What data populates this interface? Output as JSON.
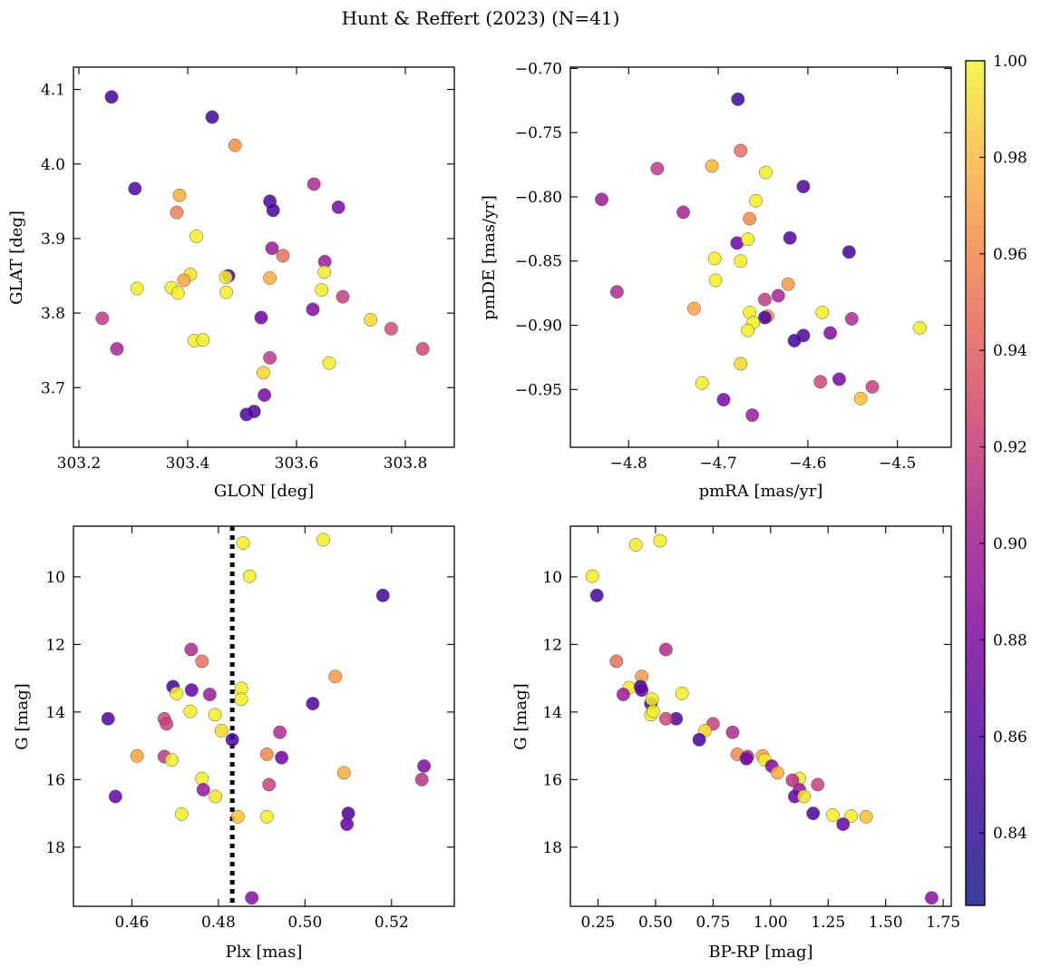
{
  "title": "Hunt & Reffert (2023) (N=41)",
  "colormap": {
    "name": "plasma",
    "min": 0.825,
    "max": 1.0,
    "ticks": [
      0.84,
      0.86,
      0.88,
      0.9,
      0.92,
      0.94,
      0.96,
      0.98,
      1.0
    ],
    "tick_labels": [
      "0.84",
      "0.86",
      "0.88",
      "0.90",
      "0.92",
      "0.94",
      "0.96",
      "0.98",
      "1.00"
    ]
  },
  "chart_data": [
    {
      "type": "scatter",
      "id": "glon-glat",
      "xlabel": "GLON [deg]",
      "ylabel": "GLAT [deg]",
      "xlim": [
        303.19,
        303.89
      ],
      "ylim": [
        3.62,
        4.13
      ],
      "xticks": [
        303.2,
        303.4,
        303.6,
        303.8
      ],
      "xtick_labels": [
        "303.2",
        "303.4",
        "303.6",
        "303.8"
      ],
      "yticks": [
        3.7,
        3.8,
        3.9,
        4.0,
        4.1
      ],
      "ytick_labels": [
        "3.7",
        "3.8",
        "3.9",
        "4.0",
        "4.1"
      ],
      "points": [
        {
          "x": 303.26,
          "y": 4.09,
          "c": 0.83
        },
        {
          "x": 303.445,
          "y": 4.063,
          "c": 0.83
        },
        {
          "x": 303.487,
          "y": 4.025,
          "c": 0.95
        },
        {
          "x": 303.303,
          "y": 3.967,
          "c": 0.835
        },
        {
          "x": 303.632,
          "y": 3.973,
          "c": 0.885
        },
        {
          "x": 303.385,
          "y": 3.958,
          "c": 0.965
        },
        {
          "x": 303.38,
          "y": 3.935,
          "c": 0.94
        },
        {
          "x": 303.551,
          "y": 3.95,
          "c": 0.835
        },
        {
          "x": 303.557,
          "y": 3.938,
          "c": 0.83
        },
        {
          "x": 303.677,
          "y": 3.942,
          "c": 0.855
        },
        {
          "x": 303.416,
          "y": 3.903,
          "c": 0.995
        },
        {
          "x": 303.555,
          "y": 3.887,
          "c": 0.875
        },
        {
          "x": 303.575,
          "y": 3.877,
          "c": 0.93
        },
        {
          "x": 303.652,
          "y": 3.869,
          "c": 0.875
        },
        {
          "x": 303.651,
          "y": 3.855,
          "c": 0.995
        },
        {
          "x": 303.475,
          "y": 3.85,
          "c": 0.83
        },
        {
          "x": 303.47,
          "y": 3.848,
          "c": 0.995
        },
        {
          "x": 303.405,
          "y": 3.852,
          "c": 0.99
        },
        {
          "x": 303.393,
          "y": 3.844,
          "c": 0.96
        },
        {
          "x": 303.551,
          "y": 3.847,
          "c": 0.965
        },
        {
          "x": 303.307,
          "y": 3.833,
          "c": 0.995
        },
        {
          "x": 303.37,
          "y": 3.834,
          "c": 0.995
        },
        {
          "x": 303.382,
          "y": 3.827,
          "c": 0.995
        },
        {
          "x": 303.471,
          "y": 3.828,
          "c": 0.995
        },
        {
          "x": 303.646,
          "y": 3.831,
          "c": 0.995
        },
        {
          "x": 303.685,
          "y": 3.822,
          "c": 0.9
        },
        {
          "x": 303.63,
          "y": 3.805,
          "c": 0.86
        },
        {
          "x": 303.535,
          "y": 3.794,
          "c": 0.85
        },
        {
          "x": 303.243,
          "y": 3.793,
          "c": 0.895
        },
        {
          "x": 303.736,
          "y": 3.791,
          "c": 0.985
        },
        {
          "x": 303.774,
          "y": 3.779,
          "c": 0.91
        },
        {
          "x": 303.412,
          "y": 3.763,
          "c": 0.995
        },
        {
          "x": 303.428,
          "y": 3.764,
          "c": 0.995
        },
        {
          "x": 303.27,
          "y": 3.752,
          "c": 0.88
        },
        {
          "x": 303.832,
          "y": 3.752,
          "c": 0.905
        },
        {
          "x": 303.551,
          "y": 3.74,
          "c": 0.895
        },
        {
          "x": 303.66,
          "y": 3.733,
          "c": 0.995
        },
        {
          "x": 303.539,
          "y": 3.72,
          "c": 0.985
        },
        {
          "x": 303.541,
          "y": 3.69,
          "c": 0.855
        },
        {
          "x": 303.508,
          "y": 3.664,
          "c": 0.835
        },
        {
          "x": 303.522,
          "y": 3.668,
          "c": 0.835
        }
      ]
    },
    {
      "type": "scatter",
      "id": "pmra-pmde",
      "xlabel": "pmRA [mas/yr]",
      "ylabel": "pmDE [mas/yr]",
      "xlim": [
        -4.865,
        -4.44
      ],
      "ylim": [
        -0.995,
        -0.699
      ],
      "xticks": [
        -4.8,
        -4.7,
        -4.6,
        -4.5
      ],
      "xtick_labels": [
        "−4.8",
        "−4.7",
        "−4.6",
        "−4.5"
      ],
      "yticks": [
        -0.95,
        -0.9,
        -0.85,
        -0.8,
        -0.75,
        -0.7
      ],
      "ytick_labels": [
        "−0.95",
        "−0.90",
        "−0.85",
        "−0.80",
        "−0.75",
        "−0.70"
      ],
      "points": [
        {
          "x": -4.678,
          "y": -0.724,
          "c": 0.83
        },
        {
          "x": -4.675,
          "y": -0.764,
          "c": 0.93
        },
        {
          "x": -4.768,
          "y": -0.778,
          "c": 0.895
        },
        {
          "x": -4.707,
          "y": -0.776,
          "c": 0.97
        },
        {
          "x": -4.647,
          "y": -0.781,
          "c": 0.995
        },
        {
          "x": -4.83,
          "y": -0.802,
          "c": 0.875
        },
        {
          "x": -4.658,
          "y": -0.803,
          "c": 0.995
        },
        {
          "x": -4.605,
          "y": -0.792,
          "c": 0.835
        },
        {
          "x": -4.739,
          "y": -0.812,
          "c": 0.88
        },
        {
          "x": -4.665,
          "y": -0.817,
          "c": 0.945
        },
        {
          "x": -4.679,
          "y": -0.836,
          "c": 0.85
        },
        {
          "x": -4.667,
          "y": -0.833,
          "c": 0.995
        },
        {
          "x": -4.62,
          "y": -0.832,
          "c": 0.835
        },
        {
          "x": -4.554,
          "y": -0.843,
          "c": 0.83
        },
        {
          "x": -4.704,
          "y": -0.848,
          "c": 0.995
        },
        {
          "x": -4.675,
          "y": -0.85,
          "c": 0.995
        },
        {
          "x": -4.622,
          "y": -0.868,
          "c": 0.955
        },
        {
          "x": -4.813,
          "y": -0.874,
          "c": 0.885
        },
        {
          "x": -4.703,
          "y": -0.865,
          "c": 0.995
        },
        {
          "x": -4.633,
          "y": -0.877,
          "c": 0.88
        },
        {
          "x": -4.648,
          "y": -0.88,
          "c": 0.895
        },
        {
          "x": -4.727,
          "y": -0.887,
          "c": 0.96
        },
        {
          "x": -4.665,
          "y": -0.89,
          "c": 0.995
        },
        {
          "x": -4.645,
          "y": -0.893,
          "c": 0.95
        },
        {
          "x": -4.648,
          "y": -0.894,
          "c": 0.83
        },
        {
          "x": -4.661,
          "y": -0.898,
          "c": 0.995
        },
        {
          "x": -4.584,
          "y": -0.89,
          "c": 0.995
        },
        {
          "x": -4.551,
          "y": -0.895,
          "c": 0.885
        },
        {
          "x": -4.667,
          "y": -0.904,
          "c": 0.995
        },
        {
          "x": -4.605,
          "y": -0.908,
          "c": 0.835
        },
        {
          "x": -4.615,
          "y": -0.912,
          "c": 0.83
        },
        {
          "x": -4.575,
          "y": -0.906,
          "c": 0.86
        },
        {
          "x": -4.475,
          "y": -0.902,
          "c": 0.995
        },
        {
          "x": -4.675,
          "y": -0.93,
          "c": 0.985
        },
        {
          "x": -4.586,
          "y": -0.944,
          "c": 0.905
        },
        {
          "x": -4.565,
          "y": -0.942,
          "c": 0.855
        },
        {
          "x": -4.718,
          "y": -0.945,
          "c": 0.995
        },
        {
          "x": -4.528,
          "y": -0.948,
          "c": 0.9
        },
        {
          "x": -4.694,
          "y": -0.958,
          "c": 0.855
        },
        {
          "x": -4.541,
          "y": -0.957,
          "c": 0.975
        },
        {
          "x": -4.662,
          "y": -0.97,
          "c": 0.875
        }
      ]
    },
    {
      "type": "scatter",
      "id": "plx-g",
      "xlabel": "Plx [mas]",
      "ylabel": "G [mag]",
      "xlim": [
        0.4465,
        0.5345
      ],
      "ylim": [
        19.75,
        8.5
      ],
      "y_inverted": true,
      "xticks": [
        0.46,
        0.48,
        0.5,
        0.52
      ],
      "xtick_labels": [
        "0.46",
        "0.48",
        "0.50",
        "0.52"
      ],
      "yticks": [
        10,
        12,
        14,
        16,
        18
      ],
      "ytick_labels": [
        "10",
        "12",
        "14",
        "16",
        "18"
      ],
      "vline": {
        "x": 0.4832,
        "style": "dotted"
      },
      "points": [
        {
          "x": 0.5042,
          "y": 8.9,
          "c": 0.995
        },
        {
          "x": 0.4857,
          "y": 9.0,
          "c": 0.995
        },
        {
          "x": 0.4872,
          "y": 9.98,
          "c": 0.995
        },
        {
          "x": 0.518,
          "y": 10.55,
          "c": 0.83
        },
        {
          "x": 0.4737,
          "y": 12.15,
          "c": 0.885
        },
        {
          "x": 0.4762,
          "y": 12.5,
          "c": 0.93
        },
        {
          "x": 0.507,
          "y": 12.95,
          "c": 0.955
        },
        {
          "x": 0.4695,
          "y": 13.25,
          "c": 0.83
        },
        {
          "x": 0.4738,
          "y": 13.35,
          "c": 0.845
        },
        {
          "x": 0.4853,
          "y": 13.3,
          "c": 0.995
        },
        {
          "x": 0.4703,
          "y": 13.45,
          "c": 0.995
        },
        {
          "x": 0.478,
          "y": 13.48,
          "c": 0.875
        },
        {
          "x": 0.4853,
          "y": 13.62,
          "c": 0.995
        },
        {
          "x": 0.5018,
          "y": 13.75,
          "c": 0.835
        },
        {
          "x": 0.4735,
          "y": 13.98,
          "c": 0.995
        },
        {
          "x": 0.4792,
          "y": 14.08,
          "c": 0.995
        },
        {
          "x": 0.4545,
          "y": 14.2,
          "c": 0.835
        },
        {
          "x": 0.4675,
          "y": 14.2,
          "c": 0.905
        },
        {
          "x": 0.468,
          "y": 14.35,
          "c": 0.9
        },
        {
          "x": 0.4807,
          "y": 14.55,
          "c": 0.985
        },
        {
          "x": 0.4942,
          "y": 14.6,
          "c": 0.885
        },
        {
          "x": 0.4832,
          "y": 14.82,
          "c": 0.83
        },
        {
          "x": 0.4912,
          "y": 15.25,
          "c": 0.945
        },
        {
          "x": 0.4612,
          "y": 15.3,
          "c": 0.96
        },
        {
          "x": 0.4675,
          "y": 15.32,
          "c": 0.895
        },
        {
          "x": 0.4946,
          "y": 15.35,
          "c": 0.85
        },
        {
          "x": 0.4692,
          "y": 15.42,
          "c": 0.995
        },
        {
          "x": 0.5275,
          "y": 15.6,
          "c": 0.86
        },
        {
          "x": 0.509,
          "y": 15.8,
          "c": 0.965
        },
        {
          "x": 0.4762,
          "y": 15.97,
          "c": 0.995
        },
        {
          "x": 0.527,
          "y": 16.0,
          "c": 0.89
        },
        {
          "x": 0.4917,
          "y": 16.15,
          "c": 0.9
        },
        {
          "x": 0.4765,
          "y": 16.3,
          "c": 0.87
        },
        {
          "x": 0.4562,
          "y": 16.5,
          "c": 0.845
        },
        {
          "x": 0.4793,
          "y": 16.5,
          "c": 0.99
        },
        {
          "x": 0.4715,
          "y": 17.02,
          "c": 0.995
        },
        {
          "x": 0.51,
          "y": 17.0,
          "c": 0.83
        },
        {
          "x": 0.4845,
          "y": 17.1,
          "c": 0.975
        },
        {
          "x": 0.4912,
          "y": 17.1,
          "c": 0.995
        },
        {
          "x": 0.5097,
          "y": 17.32,
          "c": 0.845
        },
        {
          "x": 0.4877,
          "y": 19.5,
          "c": 0.865
        }
      ]
    },
    {
      "type": "scatter",
      "id": "bprp-g",
      "xlabel": "BP-RP [mag]",
      "ylabel": "G [mag]",
      "xlim": [
        0.13,
        1.785
      ],
      "ylim": [
        19.75,
        8.5
      ],
      "y_inverted": true,
      "xticks": [
        0.25,
        0.5,
        0.75,
        1.0,
        1.25,
        1.5,
        1.75
      ],
      "xtick_labels": [
        "0.25",
        "0.50",
        "0.75",
        "1.00",
        "1.25",
        "1.50",
        "1.75"
      ],
      "yticks": [
        10,
        12,
        14,
        16,
        18
      ],
      "ytick_labels": [
        "10",
        "12",
        "14",
        "16",
        "18"
      ],
      "points": [
        {
          "x": 0.52,
          "y": 8.93,
          "c": 0.995
        },
        {
          "x": 0.415,
          "y": 9.05,
          "c": 0.995
        },
        {
          "x": 0.225,
          "y": 9.98,
          "c": 0.995
        },
        {
          "x": 0.245,
          "y": 10.55,
          "c": 0.83
        },
        {
          "x": 0.545,
          "y": 12.15,
          "c": 0.885
        },
        {
          "x": 0.33,
          "y": 12.5,
          "c": 0.93
        },
        {
          "x": 0.44,
          "y": 12.95,
          "c": 0.955
        },
        {
          "x": 0.385,
          "y": 13.28,
          "c": 0.995
        },
        {
          "x": 0.435,
          "y": 13.25,
          "c": 0.83
        },
        {
          "x": 0.44,
          "y": 13.35,
          "c": 0.845
        },
        {
          "x": 0.36,
          "y": 13.48,
          "c": 0.875
        },
        {
          "x": 0.615,
          "y": 13.45,
          "c": 0.995
        },
        {
          "x": 0.48,
          "y": 13.75,
          "c": 0.835
        },
        {
          "x": 0.485,
          "y": 13.62,
          "c": 0.995
        },
        {
          "x": 0.48,
          "y": 14.08,
          "c": 0.995
        },
        {
          "x": 0.49,
          "y": 13.98,
          "c": 0.995
        },
        {
          "x": 0.59,
          "y": 14.2,
          "c": 0.835
        },
        {
          "x": 0.545,
          "y": 14.2,
          "c": 0.905
        },
        {
          "x": 0.75,
          "y": 14.35,
          "c": 0.9
        },
        {
          "x": 0.715,
          "y": 14.55,
          "c": 0.985
        },
        {
          "x": 0.835,
          "y": 14.6,
          "c": 0.885
        },
        {
          "x": 0.69,
          "y": 14.82,
          "c": 0.83
        },
        {
          "x": 0.855,
          "y": 15.25,
          "c": 0.945
        },
        {
          "x": 0.965,
          "y": 15.3,
          "c": 0.96
        },
        {
          "x": 0.9,
          "y": 15.32,
          "c": 0.895
        },
        {
          "x": 0.895,
          "y": 15.38,
          "c": 0.85
        },
        {
          "x": 0.975,
          "y": 15.42,
          "c": 0.995
        },
        {
          "x": 1.005,
          "y": 15.6,
          "c": 0.86
        },
        {
          "x": 1.03,
          "y": 15.8,
          "c": 0.965
        },
        {
          "x": 1.125,
          "y": 15.97,
          "c": 0.995
        },
        {
          "x": 1.095,
          "y": 16.02,
          "c": 0.89
        },
        {
          "x": 1.205,
          "y": 16.15,
          "c": 0.9
        },
        {
          "x": 1.125,
          "y": 16.3,
          "c": 0.87
        },
        {
          "x": 1.105,
          "y": 16.5,
          "c": 0.845
        },
        {
          "x": 1.145,
          "y": 16.5,
          "c": 0.99
        },
        {
          "x": 1.185,
          "y": 17.0,
          "c": 0.83
        },
        {
          "x": 1.27,
          "y": 17.05,
          "c": 0.995
        },
        {
          "x": 1.35,
          "y": 17.08,
          "c": 0.995
        },
        {
          "x": 1.415,
          "y": 17.1,
          "c": 0.975
        },
        {
          "x": 1.315,
          "y": 17.32,
          "c": 0.845
        },
        {
          "x": 1.7,
          "y": 19.5,
          "c": 0.865
        }
      ]
    }
  ]
}
